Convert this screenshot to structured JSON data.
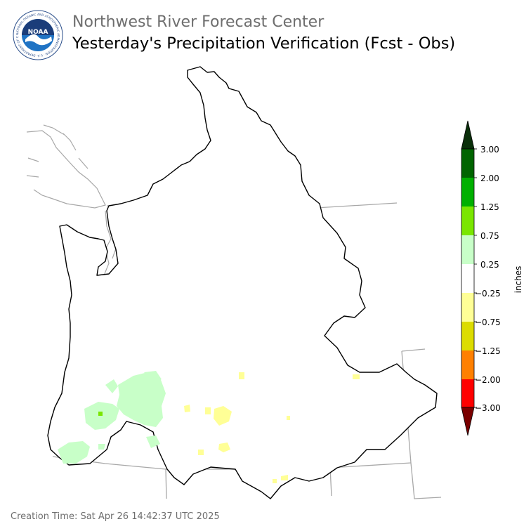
{
  "header": {
    "agency": "Northwest River Forecast Center",
    "product": "Yesterday's Precipitation Verification (Fcst - Obs)",
    "logo_text": "NOAA",
    "logo_ring_text": "NATIONAL OCEANIC AND ATMOSPHERIC ADMINISTRATION · U.S. DEPARTMENT OF COMMERCE"
  },
  "legend": {
    "unit_label": "inches",
    "ticks": [
      "3.00",
      "2.00",
      "1.25",
      "0.75",
      "0.25",
      "−0.25",
      "−0.75",
      "−1.25",
      "−2.00",
      "−3.00"
    ],
    "colors": {
      "above_max": "#0a2f0a",
      "c_2_3": "#006400",
      "c_125_2": "#00b000",
      "c_075_125": "#7ae600",
      "c_025_075": "#c8ffc8",
      "c_n025_025": "#ffffff",
      "c_n075_n025": "#ffff96",
      "c_n125_n075": "#dcdc00",
      "c_n2_n125": "#ff8000",
      "c_n3_n2": "#ff0000",
      "below_min": "#7a0000"
    }
  },
  "footer": {
    "creation_time": "Creation Time: Sat Apr 26 14:42:37 UTC 2025"
  }
}
